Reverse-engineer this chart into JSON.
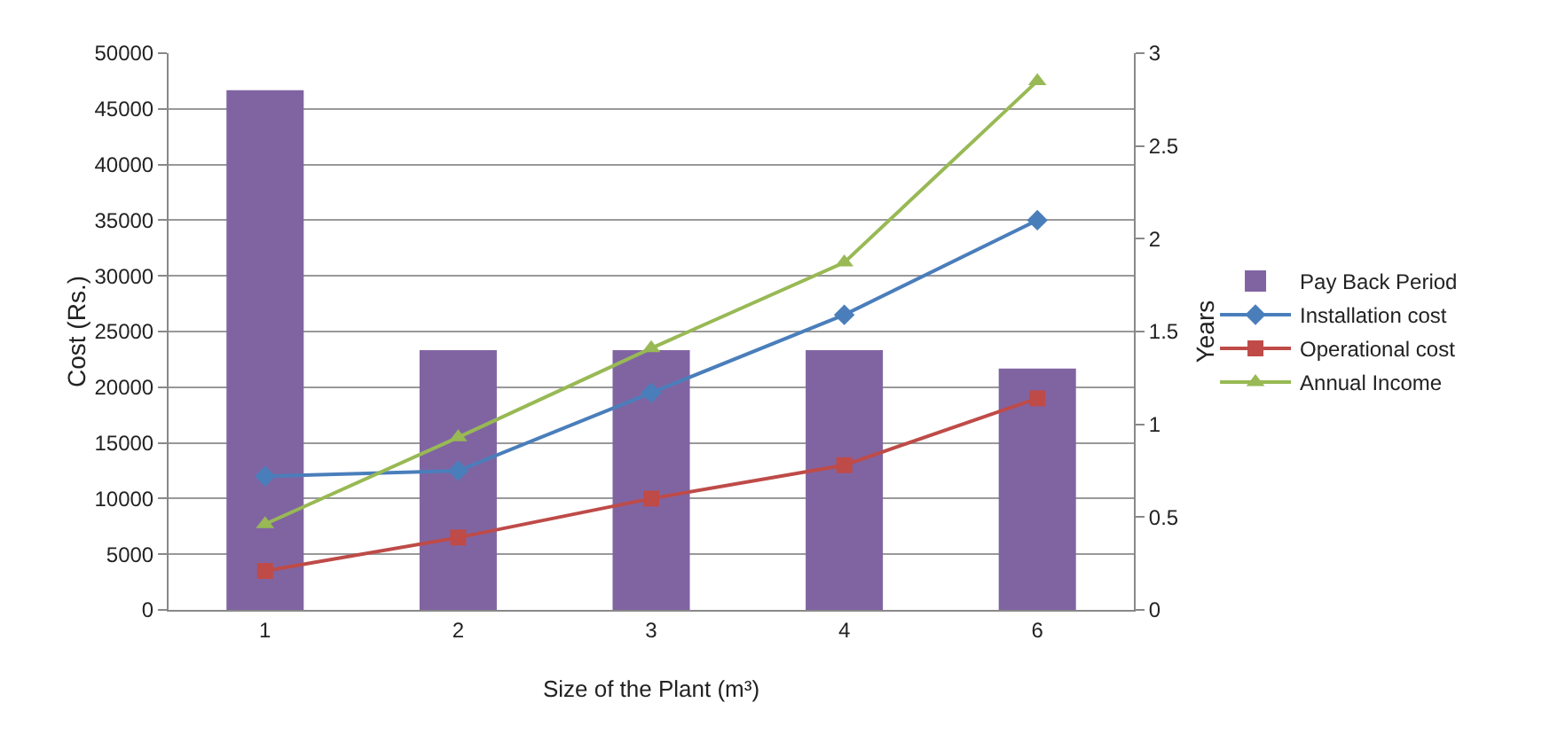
{
  "chart_data": {
    "type": "bar",
    "xlabel": "Size of the Plant (m³)",
    "ylabel": "Cost (Rs.)",
    "y2label": "Years",
    "categories": [
      "1",
      "2",
      "3",
      "4",
      "6"
    ],
    "series": [
      {
        "name": "Pay Back Period",
        "axis": "y2",
        "color": "#8064a2",
        "values": [
          2.8,
          1.4,
          1.4,
          1.4,
          1.3
        ]
      },
      {
        "name": "Installation cost",
        "type": "line",
        "marker": "diamond",
        "color": "#4a7ebb",
        "values": [
          12000,
          12500,
          19500,
          26500,
          35000
        ]
      },
      {
        "name": "Operational cost",
        "type": "line",
        "marker": "square",
        "color": "#be4b48",
        "values": [
          3500,
          6500,
          10000,
          13000,
          19000
        ]
      },
      {
        "name": "Annual Income",
        "type": "line",
        "marker": "triangle",
        "color": "#98b954",
        "values": [
          7700,
          15500,
          23500,
          31200,
          47500
        ]
      }
    ],
    "ylim": [
      0,
      50000
    ],
    "yticks": [
      0,
      5000,
      10000,
      15000,
      20000,
      25000,
      30000,
      35000,
      40000,
      45000,
      50000
    ],
    "y2lim": [
      0,
      3
    ],
    "y2ticks": [
      0,
      0.5,
      1,
      1.5,
      2,
      2.5,
      3
    ],
    "grid": "y",
    "legend": "right"
  }
}
